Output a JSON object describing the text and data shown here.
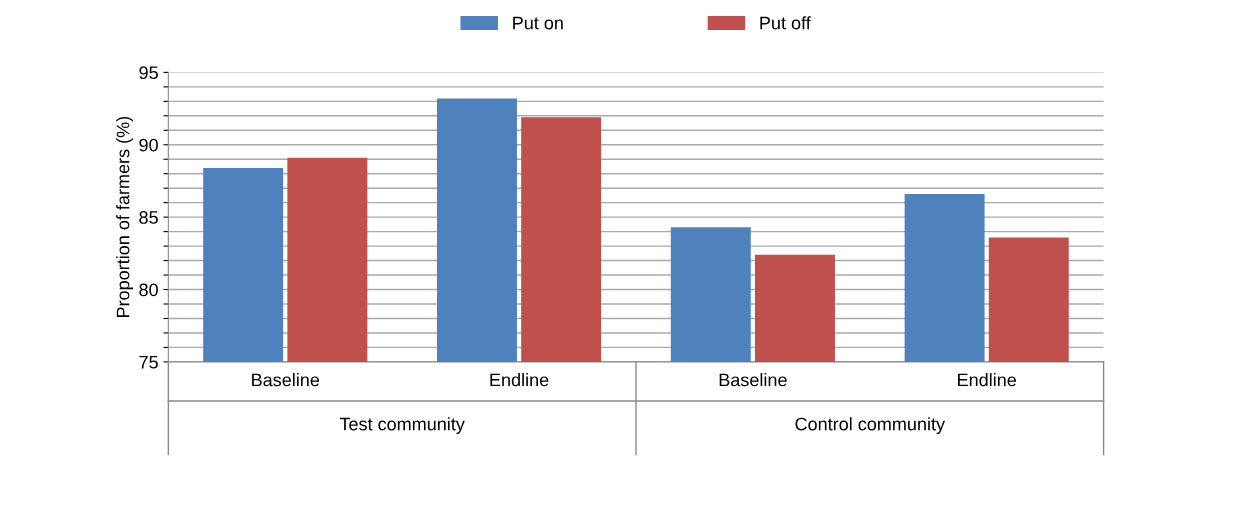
{
  "chart_data": {
    "type": "bar",
    "ylabel": "Proportion of farmers (%)",
    "categories": [
      "Baseline",
      "Endline",
      "Baseline",
      "Endline"
    ],
    "series": [
      {
        "name": "Put on",
        "color": "#4f81bd",
        "values": [
          88.4,
          93.2,
          84.3,
          86.6
        ]
      },
      {
        "name": "Put off",
        "color": "#c0504d",
        "values": [
          89.1,
          91.9,
          82.4,
          83.6
        ]
      }
    ],
    "annotations": [
      "Test community",
      "Control community"
    ],
    "ylim": [
      75,
      95
    ],
    "yticks": [
      75,
      {
        "value": 76,
        "label": null
      },
      {
        "value": 77,
        "label": null
      },
      {
        "value": 78,
        "label": null
      },
      {
        "value": 79,
        "label": null
      },
      80,
      {
        "value": 81,
        "label": null
      },
      {
        "value": 82,
        "label": null
      },
      {
        "value": 83,
        "label": null
      },
      {
        "value": 84,
        "label": null
      },
      85,
      {
        "value": 86,
        "label": null
      },
      {
        "value": 87,
        "label": null
      },
      {
        "value": 88,
        "label": null
      },
      {
        "value": 89,
        "label": null
      },
      90,
      {
        "value": 91,
        "label": null
      },
      {
        "value": 92,
        "label": null
      },
      {
        "value": 93,
        "label": null
      },
      {
        "value": 94,
        "label": null
      },
      95
    ],
    "grid": "y",
    "legend": "top"
  }
}
